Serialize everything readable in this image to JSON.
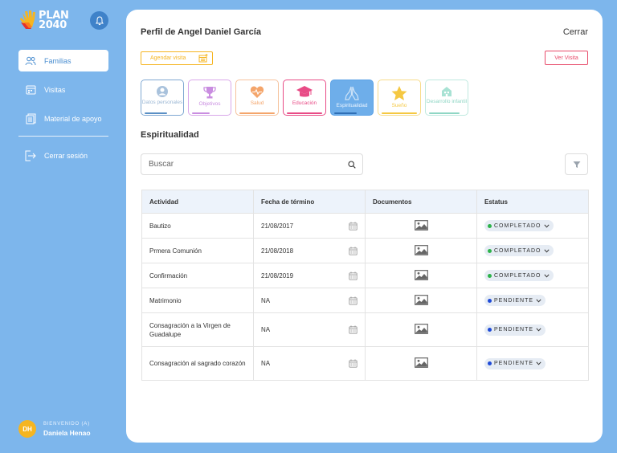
{
  "brand": {
    "line1": "PLAN",
    "line2": "2040"
  },
  "sidebar": {
    "items": [
      {
        "label": "Familias"
      },
      {
        "label": "Visitas"
      },
      {
        "label": "Material de apoyo"
      },
      {
        "label": "Cerrar sesión"
      }
    ]
  },
  "user": {
    "initials": "DH",
    "welcome": "BIENVENIDO (A)",
    "name": "Daniela Henao"
  },
  "header": {
    "title": "Perfil de Angel Daniel García",
    "close_label": "Cerrar"
  },
  "actions": {
    "agendar_label": "Agendar visita",
    "ver_visita_label": "Ver Visita"
  },
  "tabs": [
    {
      "label": "Datos personales",
      "color": "#7fa8d2",
      "icon": "user-icon"
    },
    {
      "label": "Objetivos",
      "color": "#c77fe0",
      "icon": "trophy-icon"
    },
    {
      "label": "Salud",
      "color": "#f4a56b",
      "icon": "heart-icon"
    },
    {
      "label": "Educación",
      "color": "#e84b86",
      "icon": "graduation-cap-icon"
    },
    {
      "label": "Espiritualidad",
      "color": "#5aa2e6",
      "icon": "praying-hands-icon"
    },
    {
      "label": "Sueño",
      "color": "#f5c842",
      "icon": "star-icon"
    },
    {
      "label": "Desarrollo infantil",
      "color": "#7fd3c0",
      "icon": "house-icon"
    }
  ],
  "section_title": "Espiritualidad",
  "search": {
    "placeholder": "Buscar"
  },
  "table": {
    "headers": [
      "Actividad",
      "Fecha de término",
      "Documentos",
      "Estatus"
    ],
    "rows": [
      {
        "activity": "Bautizo",
        "date": "21/08/2017",
        "status": "COMPLETADO"
      },
      {
        "activity": "Prmera Comunión",
        "date": "21/08/2018",
        "status": "COMPLETADO"
      },
      {
        "activity": "Confirmación",
        "date": "21/08/2019",
        "status": "COMPLETADO"
      },
      {
        "activity": "Matrimonio",
        "date": "NA",
        "status": "PENDIENTE"
      },
      {
        "activity": "Consagración a la Virgen de Guadalupe",
        "date": "NA",
        "status": "PENDIENTE"
      },
      {
        "activity": "Consagración al sagrado corazón",
        "date": "NA",
        "status": "PENDIENTE"
      }
    ]
  },
  "colors": {
    "completado": "#2db34a",
    "pendiente": "#1f4bd8",
    "accent": "#7db6ec"
  }
}
